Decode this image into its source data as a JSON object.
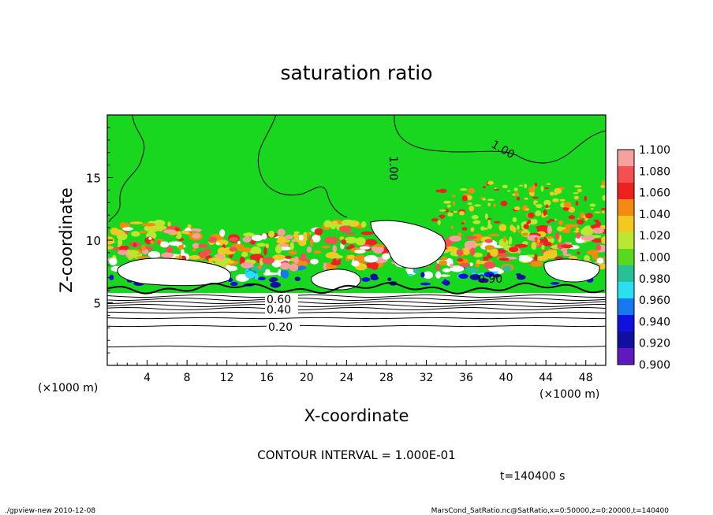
{
  "chart_data": {
    "type": "heatmap",
    "title": "saturation ratio",
    "xlabel": "X-coordinate",
    "ylabel": "Z-coordinate",
    "x_unit_label": "(×1000 m)",
    "z_unit_label": "(×1000 m)",
    "xlim": [
      0,
      50
    ],
    "ylim": [
      0,
      20
    ],
    "x_ticks": [
      4,
      8,
      12,
      16,
      20,
      24,
      28,
      32,
      36,
      40,
      44,
      48
    ],
    "y_ticks": [
      5,
      10,
      15
    ],
    "colorbar": {
      "levels": [
        "1.100",
        "1.080",
        "1.060",
        "1.040",
        "1.020",
        "1.000",
        "0.980",
        "0.960",
        "0.940",
        "0.920",
        "0.900"
      ],
      "colors": [
        "#f7a0a0",
        "#f55050",
        "#ef2020",
        "#f58a10",
        "#f3c820",
        "#b8e830",
        "#5ad820",
        "#28c098",
        "#28e0f0",
        "#1878f0",
        "#1010e0",
        "#1010a0",
        "#6018c0"
      ]
    },
    "contour_labels": [
      {
        "text": "1.00"
      },
      {
        "text": "1.00"
      },
      {
        "text": "0.60"
      },
      {
        "text": "0.40"
      },
      {
        "text": "0.20"
      },
      {
        "text": "0.90"
      }
    ],
    "contour_interval": "CONTOUR INTERVAL = 1.000E-01",
    "time_label": "t=140400 s"
  },
  "footer": {
    "left": "./gpview-new  2010-12-08",
    "right": "MarsCond_SatRatio.nc@SatRatio,x=0:50000,z=0:20000,t=140400"
  },
  "colors": {
    "field_green": "#19d61e",
    "cloud_white": "#ffffff",
    "contour": "#000000"
  }
}
